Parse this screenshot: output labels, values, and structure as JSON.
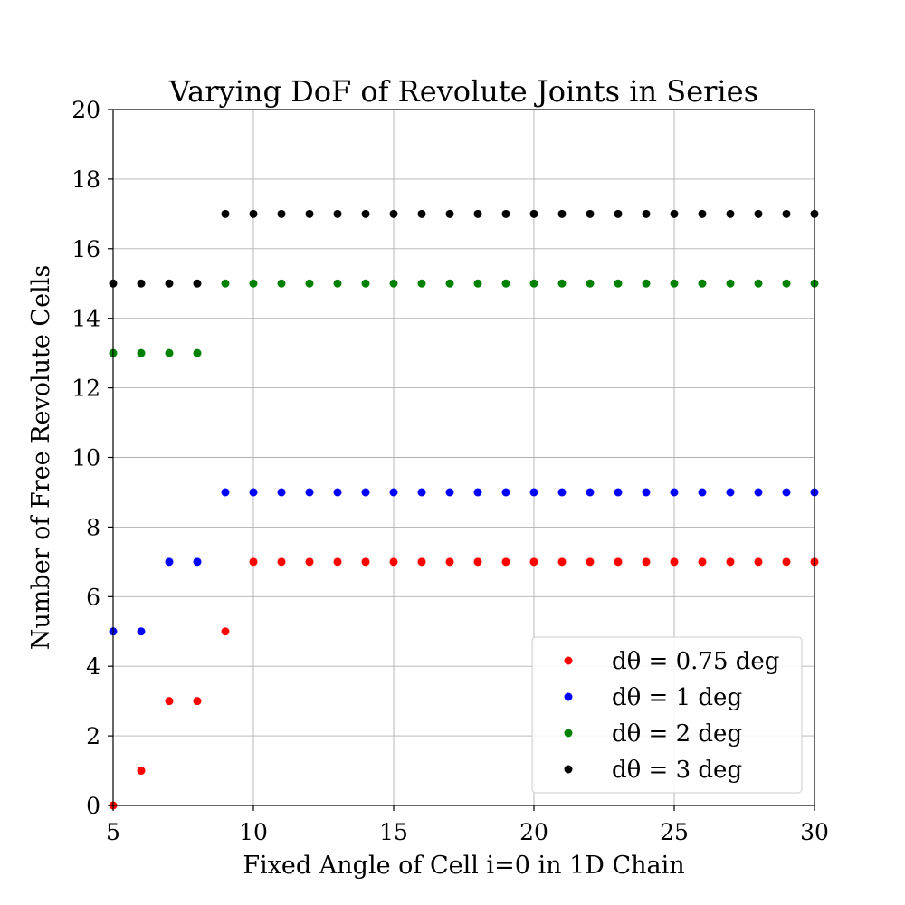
{
  "chart_data": {
    "type": "scatter",
    "title": "Varying DoF of Revolute Joints in Series",
    "xlabel": "Fixed Angle of Cell i=0 in 1D Chain",
    "ylabel": "Number of Free Revolute Cells",
    "xlim": [
      5,
      30
    ],
    "ylim": [
      0,
      20
    ],
    "x_ticks": [
      5,
      10,
      15,
      20,
      25,
      30
    ],
    "y_ticks": [
      0,
      2,
      4,
      6,
      8,
      10,
      12,
      14,
      16,
      18,
      20
    ],
    "grid": true,
    "legend_position": "lower-right",
    "x": [
      5,
      6,
      7,
      8,
      9,
      10,
      11,
      12,
      13,
      14,
      15,
      16,
      17,
      18,
      19,
      20,
      21,
      22,
      23,
      24,
      25,
      26,
      27,
      28,
      29,
      30
    ],
    "series": [
      {
        "name": "dθ = 0.75 deg",
        "color": "#ff0000",
        "values": [
          0,
          1,
          3,
          3,
          5,
          7,
          7,
          7,
          7,
          7,
          7,
          7,
          7,
          7,
          7,
          7,
          7,
          7,
          7,
          7,
          7,
          7,
          7,
          7,
          7,
          7
        ]
      },
      {
        "name": "dθ = 1 deg",
        "color": "#0000ff",
        "values": [
          5,
          5,
          7,
          7,
          9,
          9,
          9,
          9,
          9,
          9,
          9,
          9,
          9,
          9,
          9,
          9,
          9,
          9,
          9,
          9,
          9,
          9,
          9,
          9,
          9,
          9
        ]
      },
      {
        "name": "dθ = 2 deg",
        "color": "#008000",
        "values": [
          13,
          13,
          13,
          13,
          15,
          15,
          15,
          15,
          15,
          15,
          15,
          15,
          15,
          15,
          15,
          15,
          15,
          15,
          15,
          15,
          15,
          15,
          15,
          15,
          15,
          15
        ]
      },
      {
        "name": "dθ = 3 deg",
        "color": "#000000",
        "values": [
          15,
          15,
          15,
          15,
          17,
          17,
          17,
          17,
          17,
          17,
          17,
          17,
          17,
          17,
          17,
          17,
          17,
          17,
          17,
          17,
          17,
          17,
          17,
          17,
          17,
          17
        ]
      }
    ]
  }
}
